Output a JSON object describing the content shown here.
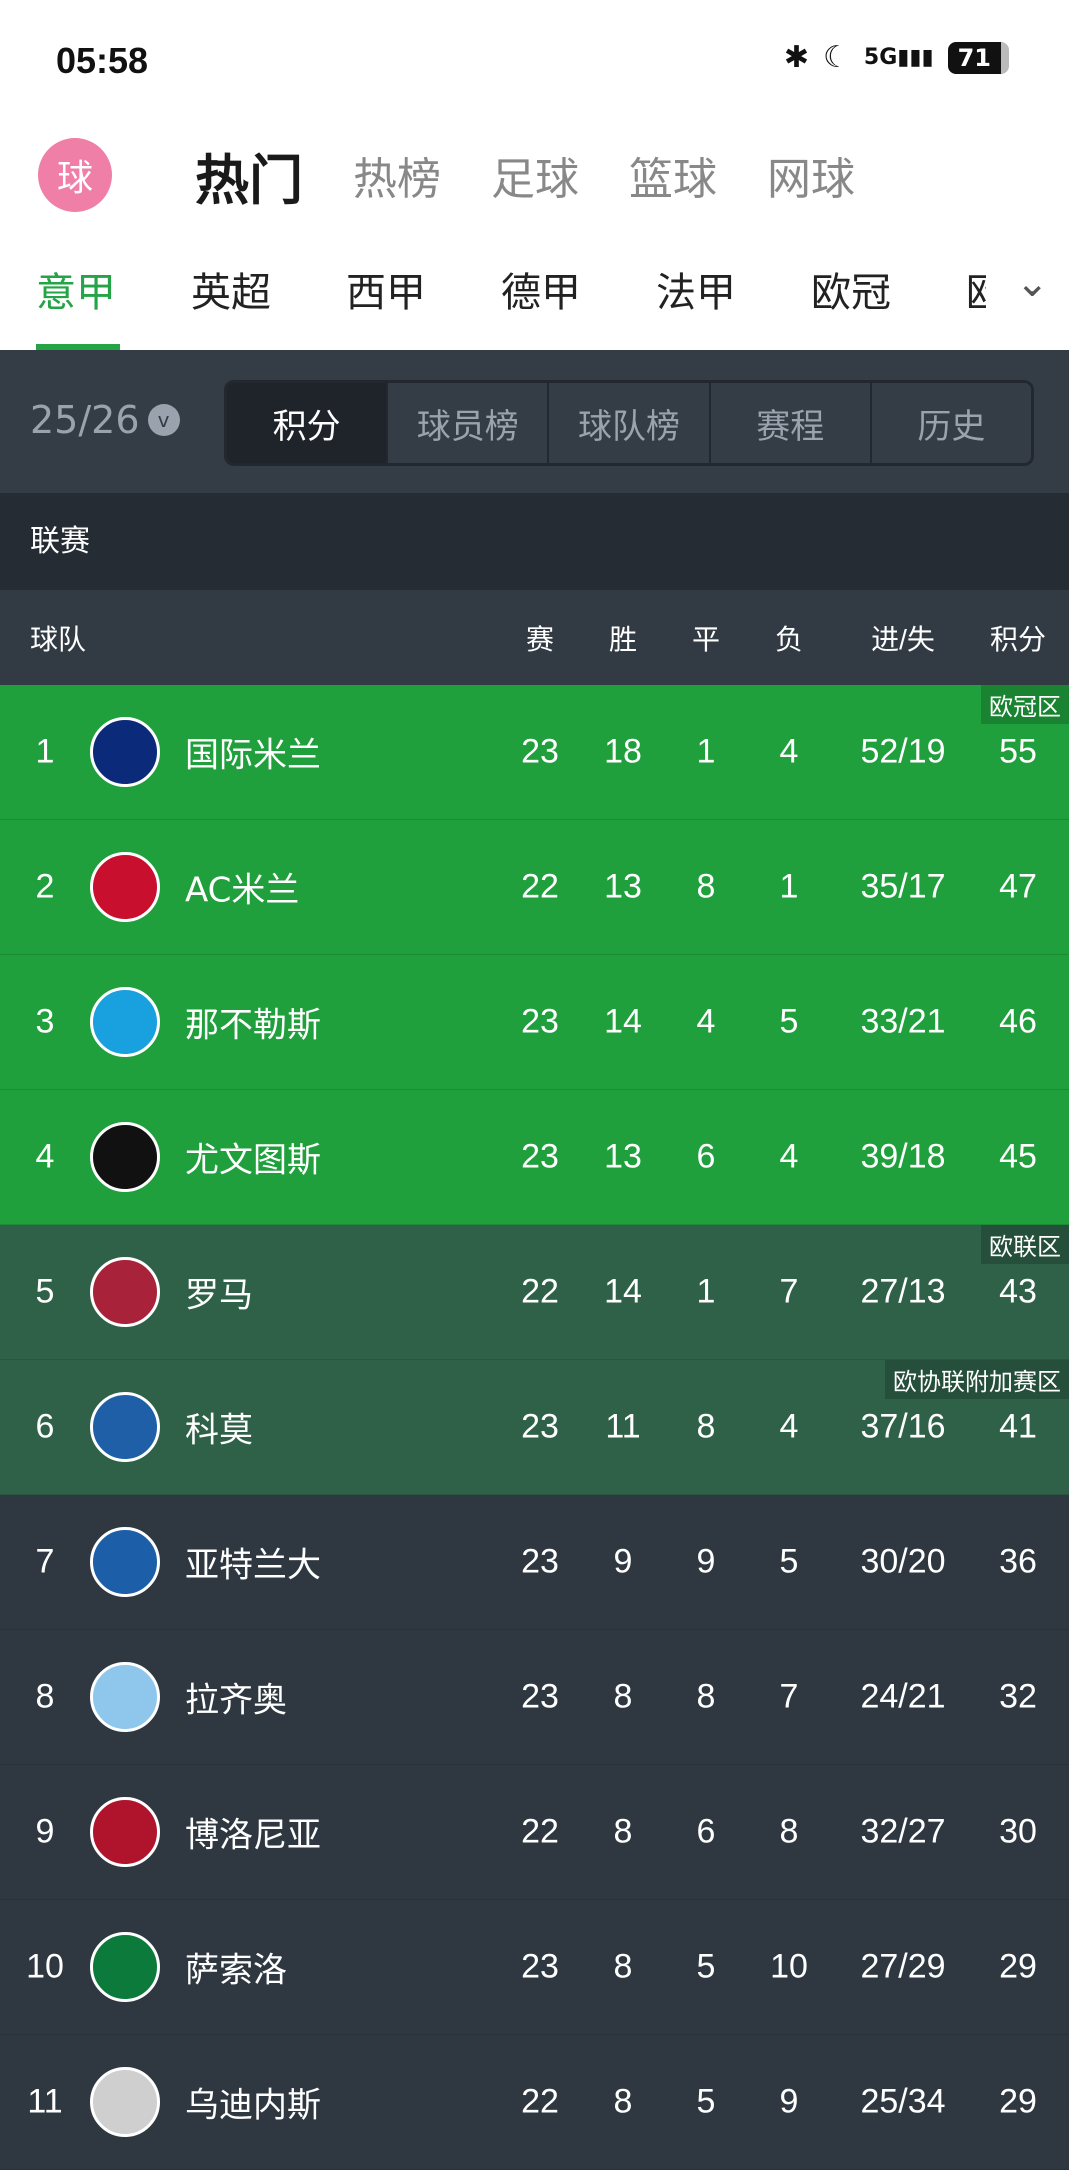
{
  "status": {
    "time": "05:58",
    "battery": "71",
    "icons": [
      "bluetooth-icon",
      "moon-icon",
      "5g-signal-icon",
      "battery-icon"
    ]
  },
  "app": {
    "logo": "球",
    "nav": [
      "热门",
      "热榜",
      "足球",
      "篮球",
      "网球"
    ],
    "active_nav": 0
  },
  "leagues": {
    "items": [
      "意甲",
      "英超",
      "西甲",
      "德甲",
      "法甲",
      "欧冠",
      "欧"
    ],
    "active": 0
  },
  "toolbar": {
    "season": "25/26",
    "tabs": [
      "积分",
      "球员榜",
      "球队榜",
      "赛程",
      "历史"
    ],
    "active": 0
  },
  "section_label": "联赛",
  "headers": {
    "team": "球队",
    "played": "赛",
    "win": "胜",
    "draw": "平",
    "loss": "负",
    "goals": "进/失",
    "points": "积分"
  },
  "colors": {
    "ucl": "#1fa03c",
    "uel": "#2f6149",
    "default": "#2f3841",
    "accent": "#24a446"
  },
  "rows": [
    {
      "rank": "1",
      "team": "国际米兰",
      "p": "23",
      "w": "18",
      "d": "1",
      "l": "4",
      "g": "52/19",
      "pts": "55",
      "zone": "ucl",
      "badge": "欧冠区",
      "crest": "#0b2a7a"
    },
    {
      "rank": "2",
      "team": "AC米兰",
      "p": "22",
      "w": "13",
      "d": "8",
      "l": "1",
      "g": "35/17",
      "pts": "47",
      "zone": "ucl",
      "crest": "#c8102e"
    },
    {
      "rank": "3",
      "team": "那不勒斯",
      "p": "23",
      "w": "14",
      "d": "4",
      "l": "5",
      "g": "33/21",
      "pts": "46",
      "zone": "ucl",
      "crest": "#19a0de"
    },
    {
      "rank": "4",
      "team": "尤文图斯",
      "p": "23",
      "w": "13",
      "d": "6",
      "l": "4",
      "g": "39/18",
      "pts": "45",
      "zone": "ucl",
      "crest": "#111111"
    },
    {
      "rank": "5",
      "team": "罗马",
      "p": "22",
      "w": "14",
      "d": "1",
      "l": "7",
      "g": "27/13",
      "pts": "43",
      "zone": "uel",
      "badge": "欧联区",
      "crest": "#a8223a"
    },
    {
      "rank": "6",
      "team": "科莫",
      "p": "23",
      "w": "11",
      "d": "8",
      "l": "4",
      "g": "37/16",
      "pts": "41",
      "zone": "uel",
      "badge": "欧协联附加赛区",
      "crest": "#1f5fa8"
    },
    {
      "rank": "7",
      "team": "亚特兰大",
      "p": "23",
      "w": "9",
      "d": "9",
      "l": "5",
      "g": "30/20",
      "pts": "36",
      "zone": "default",
      "crest": "#1c5ea8"
    },
    {
      "rank": "8",
      "team": "拉齐奥",
      "p": "23",
      "w": "8",
      "d": "8",
      "l": "7",
      "g": "24/21",
      "pts": "32",
      "zone": "default",
      "crest": "#8fc7ec"
    },
    {
      "rank": "9",
      "team": "博洛尼亚",
      "p": "22",
      "w": "8",
      "d": "6",
      "l": "8",
      "g": "32/27",
      "pts": "30",
      "zone": "default",
      "crest": "#b0142c"
    },
    {
      "rank": "10",
      "team": "萨索洛",
      "p": "23",
      "w": "8",
      "d": "5",
      "l": "10",
      "g": "27/29",
      "pts": "29",
      "zone": "default",
      "crest": "#0c7a3b"
    },
    {
      "rank": "11",
      "team": "乌迪内斯",
      "p": "22",
      "w": "8",
      "d": "5",
      "l": "9",
      "g": "25/34",
      "pts": "29",
      "zone": "default",
      "crest": "#cfcfcf"
    }
  ]
}
